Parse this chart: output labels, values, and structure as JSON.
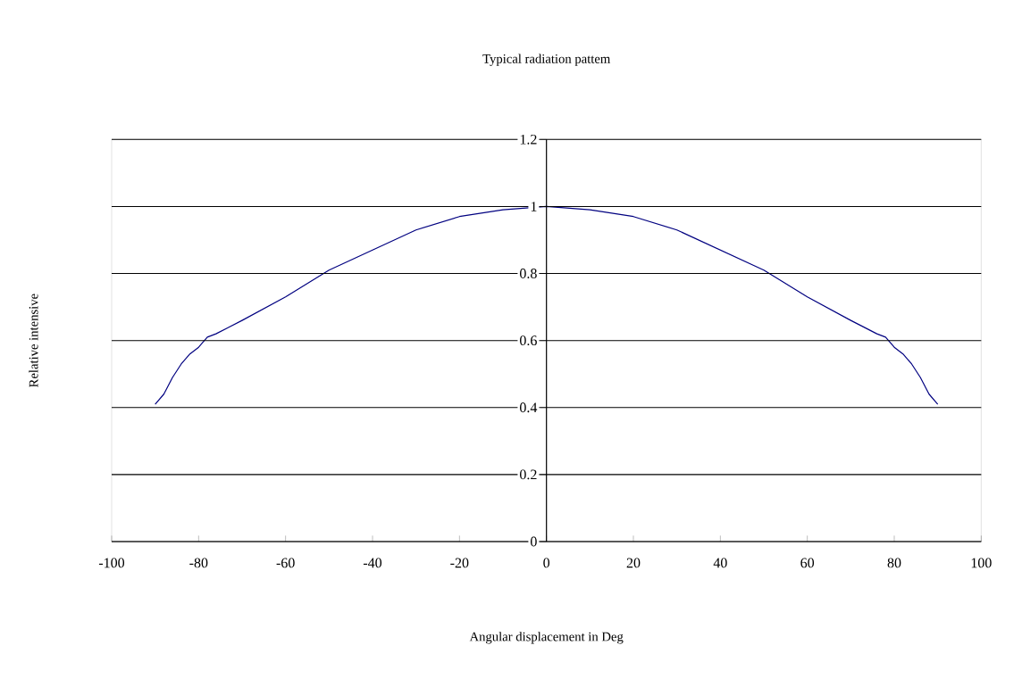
{
  "chart_data": {
    "type": "line",
    "title": "Typical radiation pattem",
    "xlabel": "Angular displacement in Deg",
    "ylabel": "Relative intensive",
    "x": [
      -90,
      -88,
      -86,
      -84,
      -82,
      -80,
      -78,
      -76,
      -70,
      -60,
      -50,
      -40,
      -30,
      -20,
      -10,
      0,
      10,
      20,
      30,
      40,
      50,
      60,
      70,
      76,
      78,
      80,
      82,
      84,
      86,
      88,
      90
    ],
    "values": [
      0.41,
      0.44,
      0.49,
      0.53,
      0.56,
      0.58,
      0.61,
      0.62,
      0.66,
      0.73,
      0.81,
      0.87,
      0.93,
      0.97,
      0.99,
      1.0,
      0.99,
      0.97,
      0.93,
      0.87,
      0.81,
      0.73,
      0.66,
      0.62,
      0.61,
      0.58,
      0.56,
      0.53,
      0.49,
      0.44,
      0.41
    ],
    "color": "#000080",
    "xlim": [
      -100,
      100
    ],
    "ylim": [
      0,
      1.2
    ],
    "xticks": [
      -100,
      -80,
      -60,
      -40,
      -20,
      0,
      20,
      40,
      60,
      80,
      100
    ],
    "yticks": [
      0,
      0.2,
      0.4,
      0.6,
      0.8,
      1,
      1.2
    ],
    "grid": "y"
  }
}
